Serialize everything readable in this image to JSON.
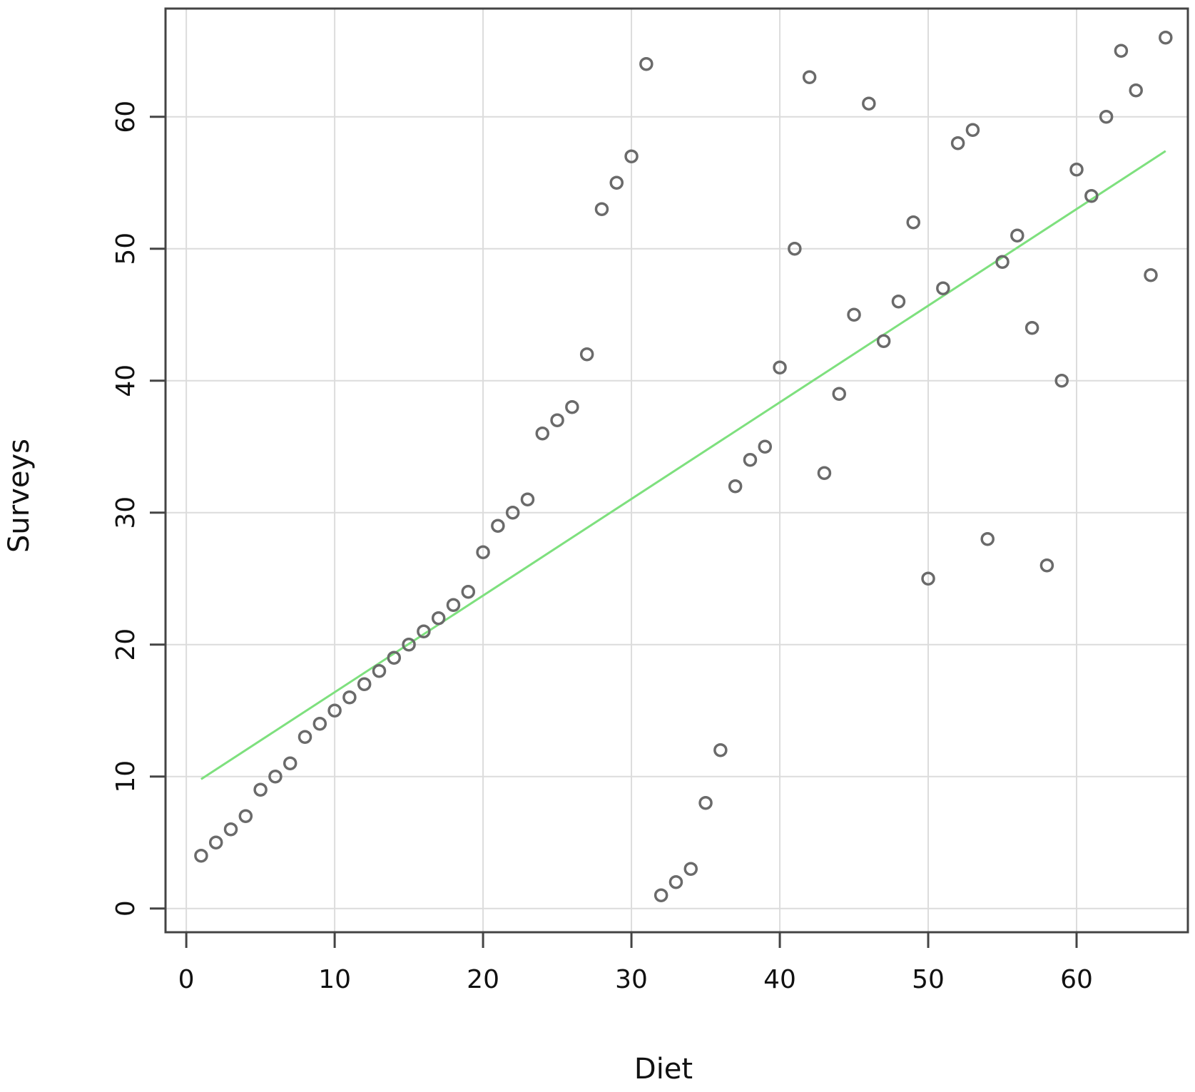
{
  "chart_data": {
    "type": "scatter",
    "title": "",
    "xlabel": "Diet",
    "ylabel": "Surveys",
    "xlim": [
      -1.4,
      67.5
    ],
    "ylim": [
      -1.8,
      68.2
    ],
    "xticks": [
      0,
      10,
      20,
      30,
      40,
      50,
      60
    ],
    "yticks": [
      0,
      10,
      20,
      30,
      40,
      50,
      60
    ],
    "grid": true,
    "colors": {
      "points": "#6a6a6a",
      "fit_line": "#7ee07e",
      "grid": "#dcdcdc",
      "frame": "#444444"
    },
    "points": [
      [
        1,
        4
      ],
      [
        2,
        5
      ],
      [
        3,
        6
      ],
      [
        4,
        7
      ],
      [
        5,
        9
      ],
      [
        6,
        10
      ],
      [
        7,
        11
      ],
      [
        8,
        13
      ],
      [
        9,
        14
      ],
      [
        10,
        15
      ],
      [
        11,
        16
      ],
      [
        12,
        17
      ],
      [
        13,
        18
      ],
      [
        14,
        19
      ],
      [
        15,
        20
      ],
      [
        16,
        21
      ],
      [
        17,
        22
      ],
      [
        18,
        23
      ],
      [
        19,
        24
      ],
      [
        20,
        27
      ],
      [
        21,
        29
      ],
      [
        22,
        30
      ],
      [
        23,
        31
      ],
      [
        24,
        36
      ],
      [
        25,
        37
      ],
      [
        26,
        38
      ],
      [
        27,
        42
      ],
      [
        28,
        53
      ],
      [
        29,
        55
      ],
      [
        30,
        57
      ],
      [
        31,
        64
      ],
      [
        32,
        1
      ],
      [
        33,
        2
      ],
      [
        34,
        3
      ],
      [
        35,
        8
      ],
      [
        36,
        12
      ],
      [
        37,
        32
      ],
      [
        38,
        34
      ],
      [
        39,
        35
      ],
      [
        40,
        41
      ],
      [
        41,
        50
      ],
      [
        42,
        63
      ],
      [
        43,
        33
      ],
      [
        44,
        39
      ],
      [
        45,
        45
      ],
      [
        46,
        61
      ],
      [
        47,
        43
      ],
      [
        48,
        46
      ],
      [
        49,
        52
      ],
      [
        50,
        25
      ],
      [
        51,
        47
      ],
      [
        52,
        58
      ],
      [
        53,
        59
      ],
      [
        54,
        28
      ],
      [
        55,
        49
      ],
      [
        56,
        51
      ],
      [
        57,
        44
      ],
      [
        58,
        26
      ],
      [
        59,
        40
      ],
      [
        60,
        56
      ],
      [
        61,
        54
      ],
      [
        62,
        60
      ],
      [
        63,
        65
      ],
      [
        64,
        62
      ],
      [
        65,
        48
      ],
      [
        66,
        66
      ]
    ],
    "fit_line": {
      "x": [
        1,
        66
      ],
      "y": [
        9.8,
        57.4
      ]
    }
  }
}
